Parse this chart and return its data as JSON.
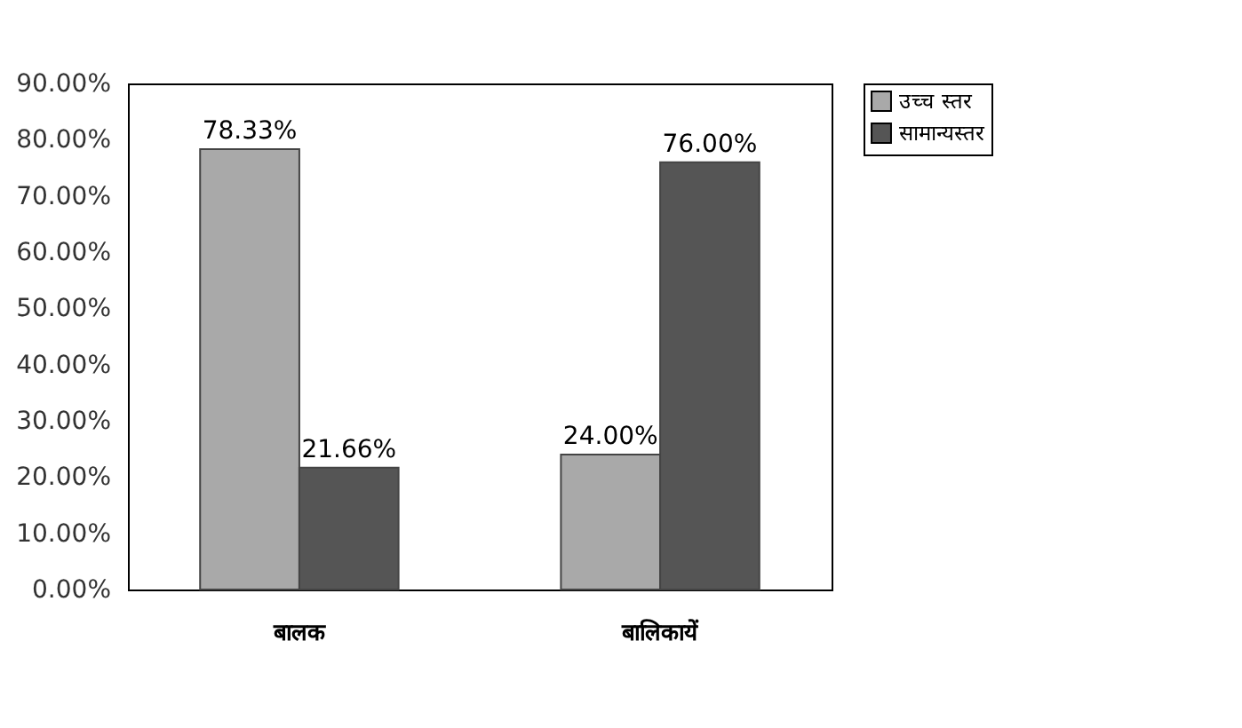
{
  "chart_data": {
    "type": "bar",
    "categories": [
      "बालक",
      "बालिकायें"
    ],
    "series": [
      {
        "name": "उच्च स्तर",
        "color": "#a9a9a9",
        "values": [
          78.33,
          24.0
        ],
        "value_labels": [
          "78.33%",
          "24.00%"
        ]
      },
      {
        "name": "सामान्यस्तर",
        "color": "#555555",
        "values": [
          21.66,
          76.0
        ],
        "value_labels": [
          "21.66%",
          "76.00%"
        ]
      }
    ],
    "ylim": [
      0,
      90
    ],
    "yticks": [
      {
        "value": 0,
        "label": "0.00%"
      },
      {
        "value": 10,
        "label": "10.00%"
      },
      {
        "value": 20,
        "label": "20.00%"
      },
      {
        "value": 30,
        "label": "30.00%"
      },
      {
        "value": 40,
        "label": "40.00%"
      },
      {
        "value": 50,
        "label": "50.00%"
      },
      {
        "value": 60,
        "label": "60.00%"
      },
      {
        "value": 70,
        "label": "70.00%"
      },
      {
        "value": 80,
        "label": "80.00%"
      },
      {
        "value": 90,
        "label": "90.00%"
      }
    ],
    "grid": false,
    "legend": "right"
  }
}
